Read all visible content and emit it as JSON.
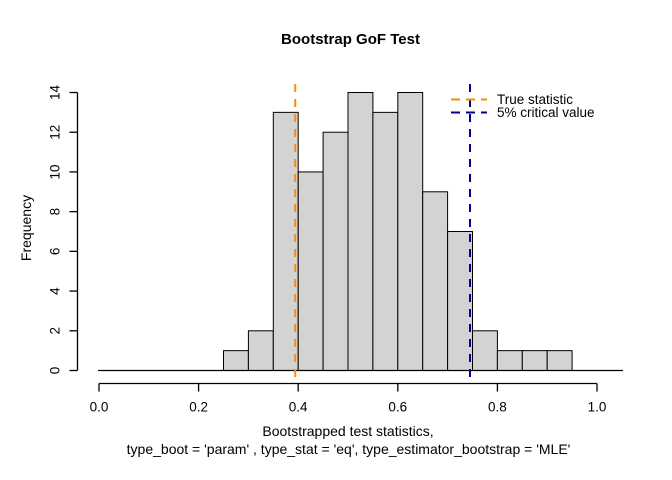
{
  "chart_data": {
    "type": "bar",
    "subtype": "histogram",
    "title": "Bootstrap GoF Test",
    "ylabel": "Frequency",
    "xlabel_line1": "Bootstrapped test statistics,",
    "xlabel_line2": "type_boot = 'param' , type_stat = 'eq', type_estimator_bootstrap = 'MLE'",
    "bin_start": 0.25,
    "bin_width": 0.05,
    "bin_edges": [
      0.25,
      0.3,
      0.35,
      0.4,
      0.45,
      0.5,
      0.55,
      0.6,
      0.65,
      0.7,
      0.75,
      0.8,
      0.85,
      0.9,
      0.95
    ],
    "counts": [
      1,
      2,
      13,
      10,
      12,
      14,
      13,
      14,
      9,
      7,
      2,
      1,
      1,
      1
    ],
    "xlim": [
      0,
      1
    ],
    "ylim": [
      0,
      14
    ],
    "grid": false,
    "x_ticks": {
      "values": [
        0,
        0.2,
        0.4,
        0.6,
        0.8,
        1.0
      ],
      "labels": [
        "0.0",
        "0.2",
        "0.4",
        "0.6",
        "0.8",
        "1.0"
      ]
    },
    "y_ticks": {
      "values": [
        0,
        2,
        4,
        6,
        8,
        10,
        12,
        14
      ],
      "labels": [
        "0",
        "2",
        "4",
        "6",
        "8",
        "10",
        "12",
        "14"
      ]
    },
    "bar_fill": "#D3D3D3",
    "bar_stroke": "#000000",
    "axis_color": "#000000",
    "vlines": [
      {
        "name": "true-statistic",
        "x": 0.394,
        "color": "#FF8C00",
        "style": "dashed"
      },
      {
        "name": "critical-value-5pct",
        "x": 0.745,
        "color": "#00008B",
        "style": "dashed"
      }
    ],
    "legend": {
      "position": "topright",
      "entries": [
        {
          "label": "True statistic",
          "color": "#FF8C00",
          "line_style": "dashed"
        },
        {
          "label": "5% critical value",
          "color": "#00008B",
          "line_style": "dashed"
        }
      ]
    }
  }
}
